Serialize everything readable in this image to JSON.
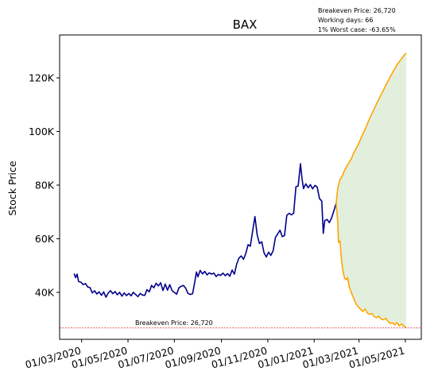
{
  "chart_data": {
    "type": "line",
    "title": "BAX",
    "xlabel": "",
    "ylabel": "Stock Price",
    "x_range": [
      "2020-02-01",
      "2021-05-22"
    ],
    "ylim": [
      22500,
      136000
    ],
    "x_ticks": [
      "01/03/2020",
      "01/05/2020",
      "01/07/2020",
      "01/09/2020",
      "01/11/2020",
      "01/01/2021",
      "01/03/2021",
      "01/05/2021"
    ],
    "x_tick_dates": [
      "2020-03-01",
      "2020-05-01",
      "2020-07-01",
      "2020-09-01",
      "2020-11-01",
      "2021-01-01",
      "2021-03-01",
      "2021-05-01"
    ],
    "y_ticks": [
      40000,
      60000,
      80000,
      100000,
      120000
    ],
    "y_tick_labels": [
      "40K",
      "60K",
      "80K",
      "100K",
      "120K"
    ],
    "grid": false,
    "annotations": {
      "lines": [
        "Breakeven Price: 26,720",
        "Working days: 66",
        "1% Worst case: -63.65%"
      ],
      "breakeven_label": "Breakeven Price: 26,720"
    },
    "breakeven": {
      "value": 26720,
      "color": "#d62728",
      "style": "dashed"
    },
    "series": [
      {
        "color": "#00008b",
        "points": [
          [
            "2020-02-20",
            47000
          ],
          [
            "2020-02-22",
            45500
          ],
          [
            "2020-02-24",
            46800
          ],
          [
            "2020-02-26",
            44000
          ],
          [
            "2020-02-29",
            43800
          ],
          [
            "2020-03-03",
            42900
          ],
          [
            "2020-03-06",
            43300
          ],
          [
            "2020-03-09",
            42000
          ],
          [
            "2020-03-12",
            41800
          ],
          [
            "2020-03-15",
            39800
          ],
          [
            "2020-03-18",
            40600
          ],
          [
            "2020-03-21",
            39400
          ],
          [
            "2020-03-24",
            40200
          ],
          [
            "2020-03-27",
            38900
          ],
          [
            "2020-03-30",
            40200
          ],
          [
            "2020-04-02",
            38200
          ],
          [
            "2020-04-05",
            39800
          ],
          [
            "2020-04-08",
            40600
          ],
          [
            "2020-04-11",
            39500
          ],
          [
            "2020-04-14",
            40300
          ],
          [
            "2020-04-17",
            39100
          ],
          [
            "2020-04-20",
            40000
          ],
          [
            "2020-04-23",
            38600
          ],
          [
            "2020-04-26",
            39800
          ],
          [
            "2020-04-29",
            38800
          ],
          [
            "2020-05-02",
            39600
          ],
          [
            "2020-05-05",
            38700
          ],
          [
            "2020-05-08",
            40000
          ],
          [
            "2020-05-11",
            39200
          ],
          [
            "2020-05-14",
            38400
          ],
          [
            "2020-05-17",
            39600
          ],
          [
            "2020-05-20",
            39000
          ],
          [
            "2020-05-23",
            38900
          ],
          [
            "2020-05-26",
            41000
          ],
          [
            "2020-05-29",
            40200
          ],
          [
            "2020-06-01",
            42600
          ],
          [
            "2020-06-04",
            41700
          ],
          [
            "2020-06-07",
            43400
          ],
          [
            "2020-06-10",
            42400
          ],
          [
            "2020-06-13",
            43600
          ],
          [
            "2020-06-16",
            40700
          ],
          [
            "2020-06-19",
            43100
          ],
          [
            "2020-06-22",
            40800
          ],
          [
            "2020-06-25",
            42900
          ],
          [
            "2020-06-28",
            40600
          ],
          [
            "2020-07-01",
            40000
          ],
          [
            "2020-07-04",
            39300
          ],
          [
            "2020-07-07",
            41700
          ],
          [
            "2020-07-10",
            42300
          ],
          [
            "2020-07-13",
            42600
          ],
          [
            "2020-07-16",
            41500
          ],
          [
            "2020-07-19",
            39600
          ],
          [
            "2020-07-22",
            39200
          ],
          [
            "2020-07-25",
            39500
          ],
          [
            "2020-07-28",
            44000
          ],
          [
            "2020-07-30",
            47600
          ],
          [
            "2020-08-01",
            45800
          ],
          [
            "2020-08-04",
            48200
          ],
          [
            "2020-08-07",
            46900
          ],
          [
            "2020-08-10",
            47800
          ],
          [
            "2020-08-13",
            46500
          ],
          [
            "2020-08-16",
            47300
          ],
          [
            "2020-08-19",
            46800
          ],
          [
            "2020-08-22",
            47200
          ],
          [
            "2020-08-25",
            45900
          ],
          [
            "2020-08-28",
            46700
          ],
          [
            "2020-08-31",
            46300
          ],
          [
            "2020-09-03",
            47200
          ],
          [
            "2020-09-06",
            46200
          ],
          [
            "2020-09-09",
            47000
          ],
          [
            "2020-09-12",
            46000
          ],
          [
            "2020-09-15",
            48300
          ],
          [
            "2020-09-18",
            46800
          ],
          [
            "2020-09-21",
            50500
          ],
          [
            "2020-09-24",
            52800
          ],
          [
            "2020-09-27",
            53600
          ],
          [
            "2020-09-30",
            52300
          ],
          [
            "2020-10-03",
            54500
          ],
          [
            "2020-10-06",
            57800
          ],
          [
            "2020-10-09",
            57200
          ],
          [
            "2020-10-12",
            62800
          ],
          [
            "2020-10-15",
            68300
          ],
          [
            "2020-10-18",
            61500
          ],
          [
            "2020-10-21",
            58200
          ],
          [
            "2020-10-24",
            58900
          ],
          [
            "2020-10-27",
            54800
          ],
          [
            "2020-10-30",
            53200
          ],
          [
            "2020-11-02",
            55000
          ],
          [
            "2020-11-05",
            53800
          ],
          [
            "2020-11-08",
            55500
          ],
          [
            "2020-11-11",
            60500
          ],
          [
            "2020-11-14",
            61800
          ],
          [
            "2020-11-17",
            63200
          ],
          [
            "2020-11-20",
            60800
          ],
          [
            "2020-11-23",
            61200
          ],
          [
            "2020-11-26",
            68700
          ],
          [
            "2020-11-29",
            69500
          ],
          [
            "2020-12-02",
            68900
          ],
          [
            "2020-12-05",
            69500
          ],
          [
            "2020-12-08",
            79400
          ],
          [
            "2020-12-11",
            79700
          ],
          [
            "2020-12-14",
            88000
          ],
          [
            "2020-12-16",
            82500
          ],
          [
            "2020-12-18",
            78700
          ],
          [
            "2020-12-21",
            80500
          ],
          [
            "2020-12-24",
            79000
          ],
          [
            "2020-12-27",
            80200
          ],
          [
            "2020-12-30",
            78600
          ],
          [
            "2021-01-02",
            79900
          ],
          [
            "2021-01-05",
            79300
          ],
          [
            "2021-01-08",
            75000
          ],
          [
            "2021-01-11",
            74000
          ],
          [
            "2021-01-13",
            62000
          ],
          [
            "2021-01-15",
            66800
          ],
          [
            "2021-01-18",
            67200
          ],
          [
            "2021-01-21",
            66000
          ],
          [
            "2021-01-24",
            67800
          ],
          [
            "2021-01-27",
            70500
          ],
          [
            "2021-01-30",
            73200
          ]
        ]
      },
      {
        "color": "#ffa500",
        "points": [
          [
            "2021-01-30",
            73200
          ],
          [
            "2021-02-01",
            78900
          ],
          [
            "2021-02-04",
            82100
          ],
          [
            "2021-02-07",
            83400
          ],
          [
            "2021-02-10",
            85600
          ],
          [
            "2021-02-13",
            87000
          ],
          [
            "2021-02-16",
            88500
          ],
          [
            "2021-02-19",
            89900
          ],
          [
            "2021-02-22",
            92000
          ],
          [
            "2021-02-25",
            93600
          ],
          [
            "2021-02-28",
            95100
          ],
          [
            "2021-03-03",
            97000
          ],
          [
            "2021-03-06",
            99100
          ],
          [
            "2021-03-09",
            100800
          ],
          [
            "2021-03-12",
            102900
          ],
          [
            "2021-03-15",
            104800
          ],
          [
            "2021-03-18",
            106700
          ],
          [
            "2021-03-21",
            108400
          ],
          [
            "2021-03-24",
            110300
          ],
          [
            "2021-03-27",
            112000
          ],
          [
            "2021-03-30",
            113700
          ],
          [
            "2021-04-02",
            115300
          ],
          [
            "2021-04-05",
            117100
          ],
          [
            "2021-04-08",
            118700
          ],
          [
            "2021-04-11",
            120300
          ],
          [
            "2021-04-14",
            121900
          ],
          [
            "2021-04-17",
            123400
          ],
          [
            "2021-04-20",
            124900
          ],
          [
            "2021-04-23",
            126000
          ],
          [
            "2021-04-26",
            127100
          ],
          [
            "2021-04-29",
            128300
          ],
          [
            "2021-05-02",
            129200
          ]
        ]
      },
      {
        "color": "#ffa500",
        "points": [
          [
            "2021-01-30",
            73200
          ],
          [
            "2021-02-01",
            66000
          ],
          [
            "2021-02-02",
            58600
          ],
          [
            "2021-02-04",
            59200
          ],
          [
            "2021-02-06",
            52000
          ],
          [
            "2021-02-08",
            47800
          ],
          [
            "2021-02-10",
            45300
          ],
          [
            "2021-02-12",
            44700
          ],
          [
            "2021-02-14",
            45500
          ],
          [
            "2021-02-16",
            42200
          ],
          [
            "2021-02-19",
            39800
          ],
          [
            "2021-02-22",
            37800
          ],
          [
            "2021-02-25",
            35700
          ],
          [
            "2021-02-28",
            34600
          ],
          [
            "2021-03-03",
            33700
          ],
          [
            "2021-03-06",
            32900
          ],
          [
            "2021-03-09",
            33800
          ],
          [
            "2021-03-12",
            32300
          ],
          [
            "2021-03-15",
            31800
          ],
          [
            "2021-03-18",
            32200
          ],
          [
            "2021-03-21",
            31000
          ],
          [
            "2021-03-24",
            30600
          ],
          [
            "2021-03-27",
            31100
          ],
          [
            "2021-03-30",
            30100
          ],
          [
            "2021-04-02",
            29800
          ],
          [
            "2021-04-05",
            30300
          ],
          [
            "2021-04-08",
            29300
          ],
          [
            "2021-04-11",
            28400
          ],
          [
            "2021-04-14",
            28700
          ],
          [
            "2021-04-17",
            27900
          ],
          [
            "2021-04-20",
            28700
          ],
          [
            "2021-04-23",
            27500
          ],
          [
            "2021-04-26",
            28200
          ],
          [
            "2021-04-29",
            27400
          ],
          [
            "2021-05-02",
            26900
          ]
        ]
      }
    ],
    "band": {
      "color": "#d8ead2",
      "between_series": [
        1,
        2
      ]
    }
  }
}
